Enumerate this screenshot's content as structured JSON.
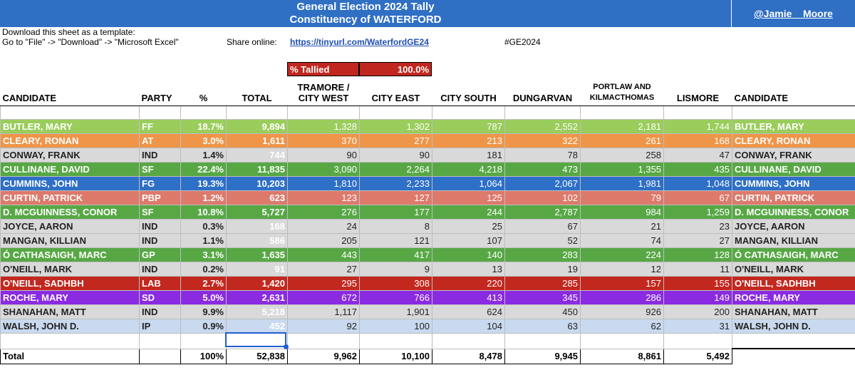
{
  "header": {
    "title_line1": "General Election 2024 Tally",
    "title_line2": "Constituency of WATERFORD",
    "handle": "@Jamie__Moore"
  },
  "info": {
    "download_line1": "Download this sheet as a template:",
    "download_line2": "Go to \"File\" -> \"Download\" -> \"Microsoft Excel\"",
    "share_label": "Share online:",
    "share_link": "https://tinyurl.com/WaterfordGE24",
    "hashtag": "#GE2024"
  },
  "tallied": {
    "label": "% Tallied",
    "value": "100.0%"
  },
  "columns": {
    "candidate": "CANDIDATE",
    "party": "PARTY",
    "pct": "%",
    "total": "TOTAL",
    "tramore_1": "TRAMORE /",
    "tramore_2": "CITY WEST",
    "city_east": "CITY EAST",
    "city_south": "CITY SOUTH",
    "dungarvan": "DUNGARVAN",
    "portlaw_1": "PORTLAW AND",
    "portlaw_2": "KILMACTHOMAS",
    "lismore": "LISMORE",
    "candidate_right": "CANDIDATE"
  },
  "colors": {
    "FF": "#9acd5b",
    "AT": "#ef9549",
    "IND": "#d9d9d9",
    "SF": "#57a845",
    "FG": "#2e6fc8",
    "PBP": "#dd7a6c",
    "GP": "#57a845",
    "LAB": "#c3281f",
    "SD": "#8a2be2",
    "IP": "#c9d9ef",
    "header_blue": "#2f6fc4",
    "tallied_red": "#c0271f"
  },
  "rows": [
    {
      "name": "BUTLER, MARY",
      "party": "FF",
      "pct": "18.7%",
      "total": "9,894",
      "tramore": "1,328",
      "city_east": "1,302",
      "city_south": "787",
      "dungarvan": "2,552",
      "portlaw": "2,181",
      "lismore": "1,744",
      "name_right": "BUTLER, MARY",
      "bg": "#9acd5b",
      "fg": "#ffffff",
      "total_fg": "#ffffff"
    },
    {
      "name": "CLEARY, RONAN",
      "party": "AT",
      "pct": "3.0%",
      "total": "1,611",
      "tramore": "370",
      "city_east": "277",
      "city_south": "213",
      "dungarvan": "322",
      "portlaw": "261",
      "lismore": "168",
      "name_right": "CLEARY, RONAN",
      "bg": "#ef9549",
      "fg": "#ffffff",
      "total_fg": "#ffffff"
    },
    {
      "name": "CONWAY, FRANK",
      "party": "IND",
      "pct": "1.4%",
      "total": "744",
      "tramore": "90",
      "city_east": "90",
      "city_south": "181",
      "dungarvan": "78",
      "portlaw": "258",
      "lismore": "47",
      "name_right": "CONWAY, FRANK",
      "bg": "#d9d9d9",
      "fg": "#222222",
      "total_fg": "#ffffff"
    },
    {
      "name": "CULLINANE, DAVID",
      "party": "SF",
      "pct": "22.4%",
      "total": "11,835",
      "tramore": "3,090",
      "city_east": "2,264",
      "city_south": "4,218",
      "dungarvan": "473",
      "portlaw": "1,355",
      "lismore": "435",
      "name_right": "CULLINANE, DAVID",
      "bg": "#57a845",
      "fg": "#ffffff",
      "total_fg": "#ffffff"
    },
    {
      "name": "CUMMINS, JOHN",
      "party": "FG",
      "pct": "19.3%",
      "total": "10,203",
      "tramore": "1,810",
      "city_east": "2,233",
      "city_south": "1,064",
      "dungarvan": "2,067",
      "portlaw": "1,981",
      "lismore": "1,048",
      "name_right": "CUMMINS, JOHN",
      "bg": "#2e6fc8",
      "fg": "#ffffff",
      "total_fg": "#ffffff"
    },
    {
      "name": "CURTIN, PATRICK",
      "party": "PBP",
      "pct": "1.2%",
      "total": "623",
      "tramore": "123",
      "city_east": "127",
      "city_south": "125",
      "dungarvan": "102",
      "portlaw": "79",
      "lismore": "67",
      "name_right": "CURTIN, PATRICK",
      "bg": "#dd7a6c",
      "fg": "#ffffff",
      "total_fg": "#ffffff"
    },
    {
      "name": "D. MCGUINNESS, CONOR",
      "party": "SF",
      "pct": "10.8%",
      "total": "5,727",
      "tramore": "276",
      "city_east": "177",
      "city_south": "244",
      "dungarvan": "2,787",
      "portlaw": "984",
      "lismore": "1,259",
      "name_right": "D. MCGUINNESS, CONOR",
      "bg": "#57a845",
      "fg": "#ffffff",
      "total_fg": "#ffffff"
    },
    {
      "name": "JOYCE, AARON",
      "party": "IND",
      "pct": "0.3%",
      "total": "168",
      "tramore": "24",
      "city_east": "8",
      "city_south": "25",
      "dungarvan": "67",
      "portlaw": "21",
      "lismore": "23",
      "name_right": "JOYCE, AARON",
      "bg": "#d9d9d9",
      "fg": "#222222",
      "total_fg": "#ffffff"
    },
    {
      "name": "MANGAN, KILLIAN",
      "party": "IND",
      "pct": "1.1%",
      "total": "586",
      "tramore": "205",
      "city_east": "121",
      "city_south": "107",
      "dungarvan": "52",
      "portlaw": "74",
      "lismore": "27",
      "name_right": "MANGAN, KILLIAN",
      "bg": "#d9d9d9",
      "fg": "#222222",
      "total_fg": "#ffffff"
    },
    {
      "name": "Ó CATHASAIGH, MARC",
      "party": "GP",
      "pct": "3.1%",
      "total": "1,635",
      "tramore": "443",
      "city_east": "417",
      "city_south": "140",
      "dungarvan": "283",
      "portlaw": "224",
      "lismore": "128",
      "name_right": "Ó CATHASAIGH, MARC",
      "bg": "#57a845",
      "fg": "#ffffff",
      "total_fg": "#ffffff"
    },
    {
      "name": "O'NEILL, MARK",
      "party": "IND",
      "pct": "0.2%",
      "total": "91",
      "tramore": "27",
      "city_east": "9",
      "city_south": "13",
      "dungarvan": "19",
      "portlaw": "12",
      "lismore": "11",
      "name_right": "O'NEILL, MARK",
      "bg": "#d9d9d9",
      "fg": "#222222",
      "total_fg": "#ffffff"
    },
    {
      "name": "O'NEILL, SADHBH",
      "party": "LAB",
      "pct": "2.7%",
      "total": "1,420",
      "tramore": "295",
      "city_east": "308",
      "city_south": "220",
      "dungarvan": "285",
      "portlaw": "157",
      "lismore": "155",
      "name_right": "O'NEILL, SADHBH",
      "bg": "#c3281f",
      "fg": "#ffffff",
      "total_fg": "#ffffff"
    },
    {
      "name": "ROCHE, MARY",
      "party": "SD",
      "pct": "5.0%",
      "total": "2,631",
      "tramore": "672",
      "city_east": "766",
      "city_south": "413",
      "dungarvan": "345",
      "portlaw": "286",
      "lismore": "149",
      "name_right": "ROCHE, MARY",
      "bg": "#8a2be2",
      "fg": "#ffffff",
      "total_fg": "#ffffff"
    },
    {
      "name": "SHANAHAN, MATT",
      "party": "IND",
      "pct": "9.9%",
      "total": "5,218",
      "tramore": "1,117",
      "city_east": "1,901",
      "city_south": "624",
      "dungarvan": "450",
      "portlaw": "926",
      "lismore": "200",
      "name_right": "SHANAHAN, MATT",
      "bg": "#d9d9d9",
      "fg": "#222222",
      "total_fg": "#ffffff"
    },
    {
      "name": "WALSH, JOHN D.",
      "party": "IP",
      "pct": "0.9%",
      "total": "452",
      "tramore": "92",
      "city_east": "100",
      "city_south": "104",
      "dungarvan": "63",
      "portlaw": "62",
      "lismore": "31",
      "name_right": "WALSH, JOHN D.",
      "bg": "#c9d9ef",
      "fg": "#222222",
      "total_fg": "#ffffff"
    }
  ],
  "totals": {
    "label": "Total",
    "pct": "100%",
    "total": "52,838",
    "tramore": "9,962",
    "city_east": "10,100",
    "city_south": "8,478",
    "dungarvan": "9,945",
    "portlaw": "8,861",
    "lismore": "5,492"
  }
}
